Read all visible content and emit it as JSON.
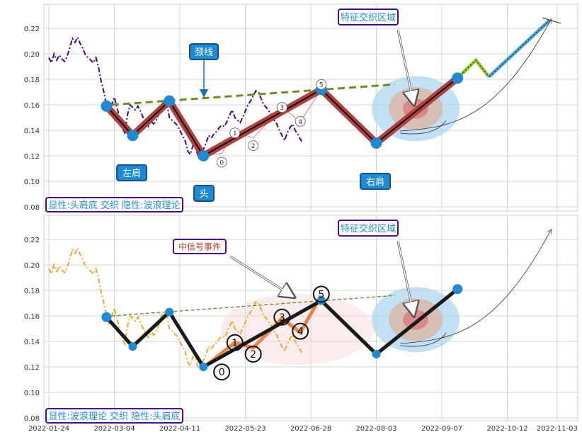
{
  "chart_data": [
    {
      "type": "line",
      "panel": "top",
      "xlabels": [
        "2022-01-24",
        "2022-03-04",
        "2022-04-11",
        "2022-05-23",
        "2022-06-28",
        "2022-08-03",
        "2022-09-07",
        "2022-10-12",
        "2022-11-03"
      ],
      "xtick_index": [
        0,
        25,
        50,
        75,
        100,
        125,
        150,
        175,
        194
      ],
      "yticks": [
        0.08,
        0.1,
        0.12,
        0.14,
        0.16,
        0.18,
        0.2,
        0.22
      ],
      "ylim": [
        0.078,
        0.238
      ],
      "grid": true,
      "price_color": "#4b0082",
      "price": [
        [
          0,
          0.197
        ],
        [
          1,
          0.193
        ],
        [
          2,
          0.2
        ],
        [
          3,
          0.195
        ],
        [
          4,
          0.199
        ],
        [
          5,
          0.196
        ],
        [
          6,
          0.194
        ],
        [
          7,
          0.198
        ],
        [
          8,
          0.205
        ],
        [
          9,
          0.212
        ],
        [
          10,
          0.209
        ],
        [
          11,
          0.213
        ],
        [
          12,
          0.208
        ],
        [
          13,
          0.204
        ],
        [
          14,
          0.199
        ],
        [
          15,
          0.197
        ],
        [
          16,
          0.195
        ],
        [
          17,
          0.193
        ],
        [
          18,
          0.197
        ],
        [
          19,
          0.189
        ],
        [
          20,
          0.178
        ],
        [
          21,
          0.17
        ],
        [
          22,
          0.16
        ],
        [
          23,
          0.154
        ],
        [
          24,
          0.16
        ],
        [
          25,
          0.166
        ],
        [
          26,
          0.158
        ],
        [
          27,
          0.15
        ],
        [
          28,
          0.142
        ],
        [
          29,
          0.138
        ],
        [
          30,
          0.152
        ],
        [
          31,
          0.16
        ],
        [
          32,
          0.158
        ],
        [
          33,
          0.156
        ],
        [
          34,
          0.159
        ],
        [
          35,
          0.155
        ],
        [
          36,
          0.15
        ],
        [
          37,
          0.146
        ],
        [
          38,
          0.143
        ],
        [
          39,
          0.147
        ],
        [
          40,
          0.145
        ],
        [
          41,
          0.148
        ],
        [
          42,
          0.153
        ],
        [
          43,
          0.16
        ],
        [
          44,
          0.163
        ],
        [
          45,
          0.162
        ],
        [
          46,
          0.15
        ],
        [
          47,
          0.148
        ],
        [
          48,
          0.146
        ],
        [
          49,
          0.144
        ],
        [
          50,
          0.14
        ],
        [
          51,
          0.136
        ],
        [
          52,
          0.132
        ],
        [
          53,
          0.124
        ],
        [
          54,
          0.121
        ],
        [
          55,
          0.128
        ],
        [
          56,
          0.126
        ],
        [
          57,
          0.12
        ],
        [
          58,
          0.122
        ],
        [
          59,
          0.125
        ],
        [
          60,
          0.13
        ],
        [
          61,
          0.136
        ],
        [
          62,
          0.134
        ],
        [
          63,
          0.137
        ],
        [
          64,
          0.139
        ],
        [
          65,
          0.142
        ],
        [
          66,
          0.144
        ],
        [
          67,
          0.143
        ],
        [
          68,
          0.147
        ],
        [
          69,
          0.152
        ],
        [
          70,
          0.156
        ],
        [
          71,
          0.15
        ],
        [
          72,
          0.148
        ],
        [
          73,
          0.146
        ],
        [
          74,
          0.15
        ],
        [
          75,
          0.155
        ],
        [
          76,
          0.16
        ],
        [
          77,
          0.163
        ],
        [
          78,
          0.167
        ],
        [
          79,
          0.171
        ],
        [
          80,
          0.17
        ],
        [
          81,
          0.165
        ],
        [
          82,
          0.16
        ],
        [
          83,
          0.158
        ],
        [
          84,
          0.155
        ],
        [
          85,
          0.152
        ],
        [
          86,
          0.148
        ],
        [
          87,
          0.145
        ],
        [
          88,
          0.14
        ],
        [
          89,
          0.136
        ],
        [
          90,
          0.132
        ],
        [
          91,
          0.138
        ],
        [
          92,
          0.142
        ],
        [
          93,
          0.145
        ],
        [
          94,
          0.14
        ],
        [
          95,
          0.137
        ],
        [
          96,
          0.133
        ],
        [
          97,
          0.13
        ]
      ],
      "pattern_color": "#b0413e",
      "pattern_pivots": [
        [
          22,
          0.159
        ],
        [
          32,
          0.136
        ],
        [
          46,
          0.163
        ],
        [
          59,
          0.12
        ],
        [
          104,
          0.172
        ],
        [
          125,
          0.13
        ],
        [
          156,
          0.181
        ]
      ],
      "pivot_color": "#1f8ad4",
      "neckline": [
        [
          24,
          0.16
        ],
        [
          132,
          0.176
        ]
      ],
      "neckline_color": "#6b8e23",
      "projection_green": [
        [
          156,
          0.181
        ],
        [
          163,
          0.195
        ],
        [
          168,
          0.182
        ]
      ],
      "projection_blue": [
        [
          168,
          0.182
        ],
        [
          191,
          0.226
        ]
      ],
      "waves": [
        {
          "label": "0",
          "i": 66,
          "v": 0.115
        },
        {
          "label": "1",
          "i": 71,
          "v": 0.138
        },
        {
          "label": "2",
          "i": 78,
          "v": 0.128
        },
        {
          "label": "3",
          "i": 89,
          "v": 0.158
        },
        {
          "label": "4",
          "i": 96,
          "v": 0.147
        },
        {
          "label": "5",
          "i": 104,
          "v": 0.176
        }
      ],
      "annotations": {
        "neckline": "颈线",
        "feature": "特征交织区域",
        "left_shoulder": "左肩",
        "head": "头",
        "right_shoulder": "右肩",
        "legend": "显性:头肩底 交织 隐性:波浪理论"
      }
    },
    {
      "type": "line",
      "panel": "bottom",
      "price_color": "#f0a830",
      "pattern_color": "#1a1a1a",
      "wave_line_color": "#e8864a",
      "wave_points": [
        [
          60,
          0.121
        ],
        [
          71,
          0.139
        ],
        [
          78,
          0.135
        ],
        [
          89,
          0.158
        ],
        [
          96,
          0.147
        ],
        [
          104,
          0.176
        ]
      ],
      "waves": [
        {
          "label": "0",
          "i": 66,
          "v": 0.116
        },
        {
          "label": "1",
          "i": 71,
          "v": 0.139
        },
        {
          "label": "2",
          "i": 78,
          "v": 0.13
        },
        {
          "label": "3",
          "i": 89,
          "v": 0.159
        },
        {
          "label": "4",
          "i": 96,
          "v": 0.148
        },
        {
          "label": "5",
          "i": 104,
          "v": 0.177
        }
      ],
      "annotations": {
        "signal": "中信号事件",
        "feature": "特征交织区域",
        "legend": "显性:波浪理论 交织 隐性:头肩底"
      }
    }
  ]
}
